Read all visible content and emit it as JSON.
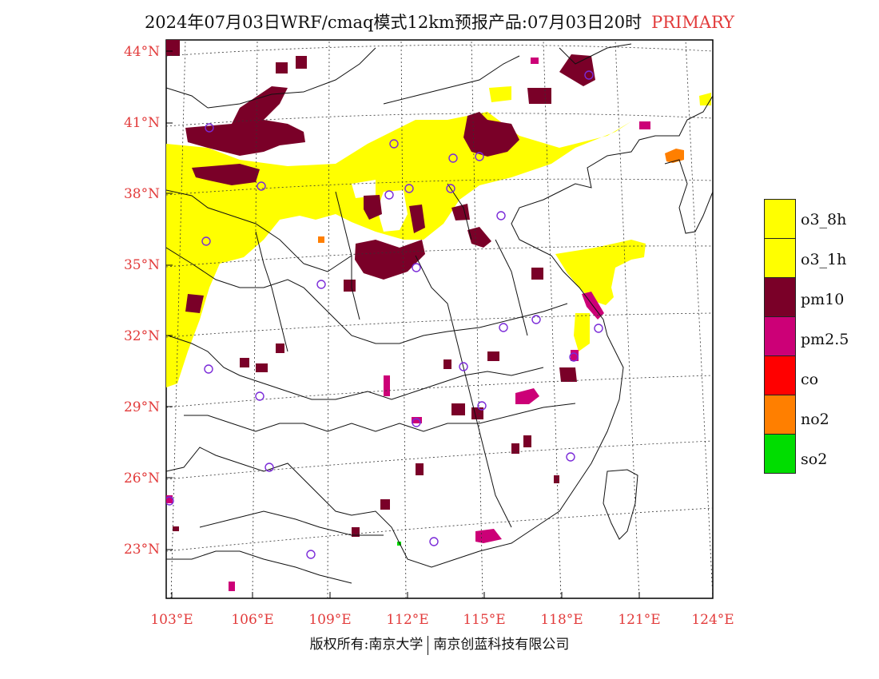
{
  "title": {
    "text": "2024年07月03日WRF/cmaq模式12km预报产品:07月03日20时",
    "tag": "PRIMARY"
  },
  "axes": {
    "lat_labels": [
      "44°N",
      "41°N",
      "38°N",
      "35°N",
      "32°N",
      "29°N",
      "26°N",
      "23°N"
    ],
    "lon_labels": [
      "103°E",
      "106°E",
      "109°E",
      "112°E",
      "115°E",
      "118°E",
      "121°E",
      "124°E"
    ]
  },
  "legend": {
    "items": [
      {
        "label": "o3_8h",
        "color": "#ffff00"
      },
      {
        "label": "o3_1h",
        "color": "#ffff00"
      },
      {
        "label": "pm10",
        "color": "#7a0028"
      },
      {
        "label": "pm2.5",
        "color": "#cc0077"
      },
      {
        "label": "co",
        "color": "#ff0000"
      },
      {
        "label": "no2",
        "color": "#ff7f00"
      },
      {
        "label": "so2",
        "color": "#00dd00"
      }
    ]
  },
  "colors": {
    "label_red": "#e23b3b",
    "o3": "#ffff00",
    "pm10": "#7a0028",
    "pm25": "#cc0077",
    "no2": "#ff7f00",
    "so2": "#00dd00",
    "station_circle": "#7a2ad8"
  },
  "copyright": {
    "left": "版权所有:南京大学",
    "right": "南京创蓝科技有限公司"
  }
}
